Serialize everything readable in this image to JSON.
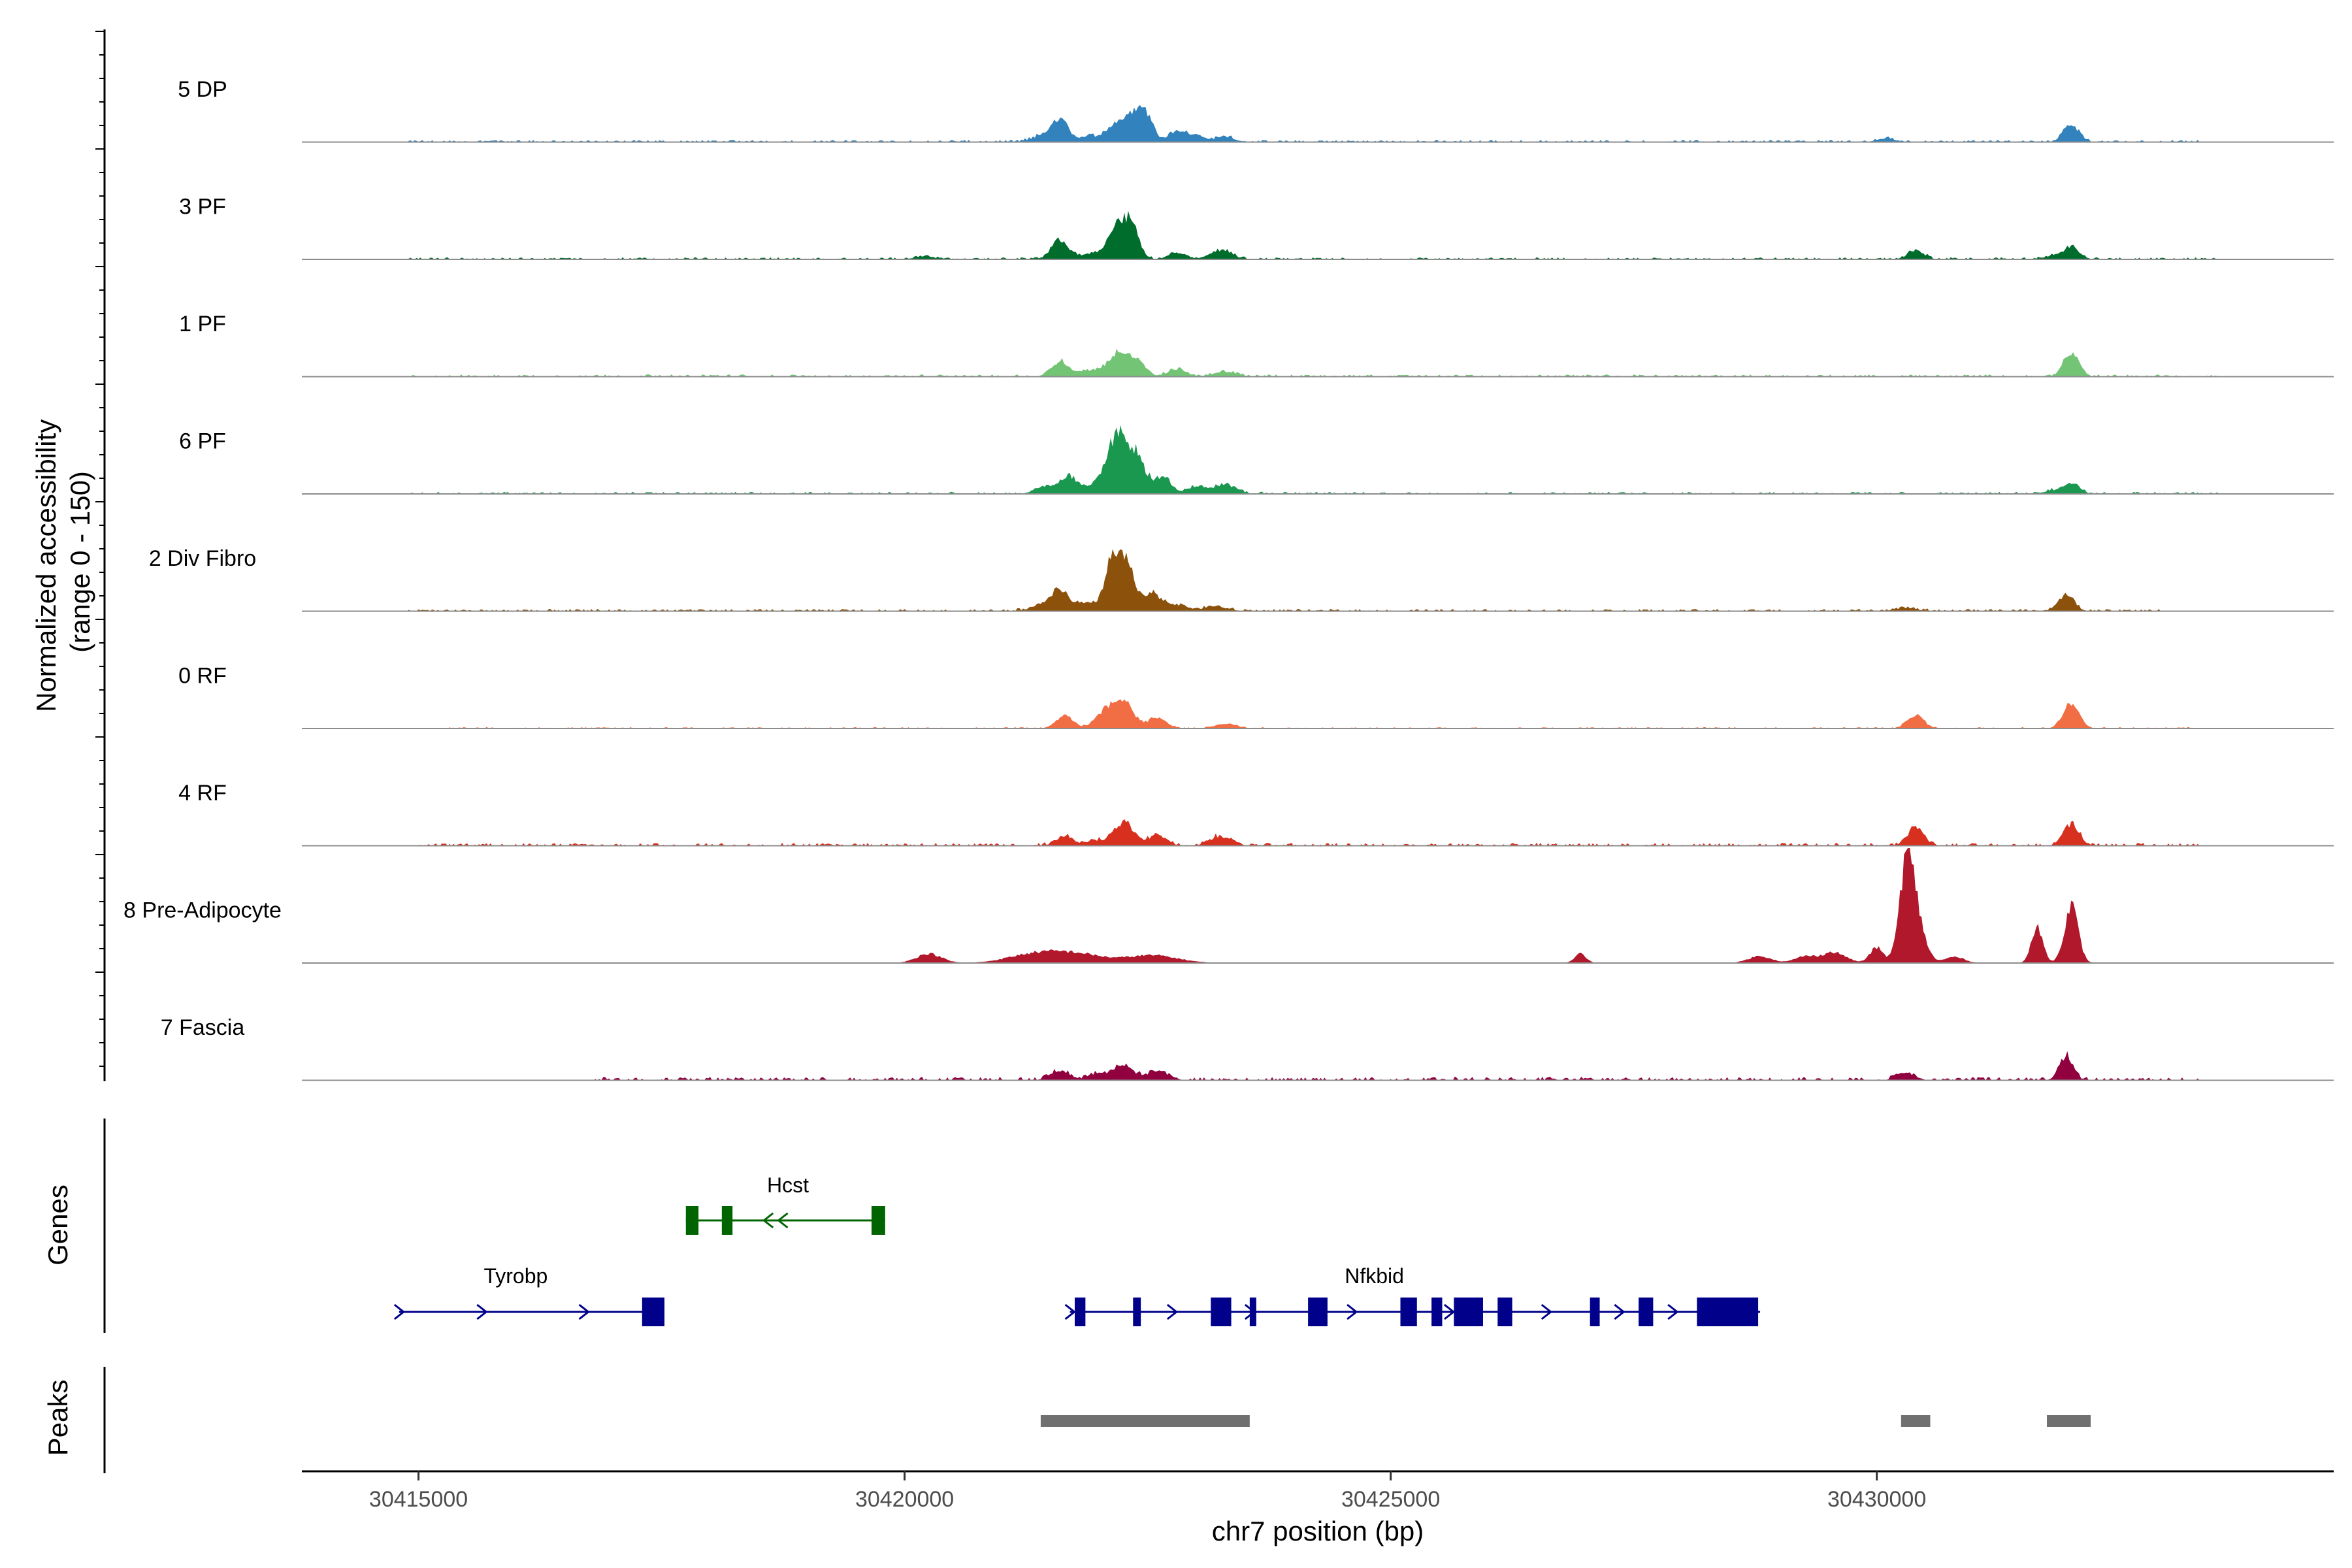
{
  "chart_data": {
    "type": "area",
    "title": "",
    "ylabel": "Normalized accessibility\n(range 0 - 150)",
    "ylabel_lines": [
      "Normalized accessibility",
      "(range 0 - 150)"
    ],
    "ylim": [
      0,
      150
    ],
    "xlabel": "chr7 position (bp)",
    "xlim": [
      30413800,
      30434700
    ],
    "x_ticks": [
      30415000,
      30420000,
      30425000,
      30430000
    ],
    "x_tick_labels": [
      "30415000",
      "30420000",
      "30425000",
      "30430000"
    ],
    "panel_labels": {
      "genes": "Genes",
      "peaks": "Peaks"
    },
    "tracks": [
      {
        "name": "5 DP",
        "color": "#3182bd",
        "peaks": [
          [
            30421400,
            7,
            100
          ],
          [
            30421900,
            6,
            80
          ],
          [
            30422200,
            26,
            120
          ],
          [
            30422400,
            30,
            90
          ],
          [
            30421600,
            28,
            90
          ],
          [
            30422500,
            20,
            70
          ],
          [
            30422800,
            14,
            90
          ],
          [
            30423000,
            8,
            90
          ],
          [
            30423300,
            7,
            90
          ],
          [
            30430100,
            5,
            90
          ],
          [
            30432000,
            22,
            80
          ]
        ],
        "noise": [
          [
            30414900,
            30433300,
            2
          ]
        ]
      },
      {
        "name": "3 PF",
        "color": "#006d2c",
        "peaks": [
          [
            30421600,
            25,
            90
          ],
          [
            30421900,
            6,
            80
          ],
          [
            30422200,
            45,
            110
          ],
          [
            30422350,
            30,
            70
          ],
          [
            30422800,
            8,
            90
          ],
          [
            30423250,
            12,
            110
          ],
          [
            30420200,
            4,
            90
          ],
          [
            30430400,
            12,
            80
          ],
          [
            30432000,
            16,
            80
          ],
          [
            30431800,
            4,
            90
          ]
        ],
        "noise": [
          [
            30414900,
            30433500,
            1.8
          ]
        ]
      },
      {
        "name": "1 PF",
        "color": "#74c476",
        "peaks": [
          [
            30421600,
            20,
            90
          ],
          [
            30421900,
            8,
            90
          ],
          [
            30422200,
            30,
            110
          ],
          [
            30422400,
            18,
            80
          ],
          [
            30422800,
            10,
            90
          ],
          [
            30423300,
            6,
            120
          ],
          [
            30432000,
            30,
            80
          ]
        ],
        "noise": [
          [
            30414900,
            30433500,
            2
          ]
        ]
      },
      {
        "name": "6 PF",
        "color": "#1a9850",
        "peaks": [
          [
            30421450,
            10,
            100
          ],
          [
            30421700,
            22,
            90
          ],
          [
            30422000,
            14,
            90
          ],
          [
            30422200,
            78,
            100
          ],
          [
            30422400,
            42,
            80
          ],
          [
            30422650,
            22,
            90
          ],
          [
            30423000,
            10,
            90
          ],
          [
            30423300,
            12,
            110
          ],
          [
            30432000,
            15,
            80
          ],
          [
            30431800,
            4,
            90
          ]
        ],
        "noise": [
          [
            30414900,
            30433500,
            1.8
          ]
        ]
      },
      {
        "name": "2 Div Fibro",
        "color": "#8c510a",
        "peaks": [
          [
            30421400,
            6,
            120
          ],
          [
            30421600,
            28,
            90
          ],
          [
            30421850,
            10,
            80
          ],
          [
            30422150,
            68,
            90
          ],
          [
            30422300,
            45,
            80
          ],
          [
            30422550,
            22,
            90
          ],
          [
            30422800,
            8,
            110
          ],
          [
            30423200,
            6,
            120
          ],
          [
            30430300,
            4,
            110
          ],
          [
            30431950,
            22,
            80
          ]
        ],
        "noise": [
          [
            30414900,
            30433000,
            2
          ]
        ]
      },
      {
        "name": "0 RF",
        "color": "#f16d43",
        "peaks": [
          [
            30421650,
            16,
            90
          ],
          [
            30422050,
            20,
            90
          ],
          [
            30422250,
            36,
            100
          ],
          [
            30422600,
            14,
            90
          ],
          [
            30423300,
            6,
            110
          ],
          [
            30430400,
            18,
            80
          ],
          [
            30432000,
            33,
            80
          ]
        ],
        "noise": [
          [
            30415200,
            30433300,
            1.2
          ]
        ]
      },
      {
        "name": "4 RF",
        "color": "#d7301f",
        "peaks": [
          [
            30421650,
            12,
            90
          ],
          [
            30421950,
            7,
            80
          ],
          [
            30422250,
            30,
            100
          ],
          [
            30422600,
            14,
            90
          ],
          [
            30423250,
            12,
            110
          ],
          [
            30430400,
            24,
            80
          ],
          [
            30432000,
            28,
            80
          ]
        ],
        "noise": [
          [
            30414900,
            30433300,
            2.5
          ]
        ]
      },
      {
        "name": "8 Pre-Adipocyte",
        "color": "#b2182b",
        "peaks": [
          [
            30420250,
            12,
            130
          ],
          [
            30421300,
            10,
            260
          ],
          [
            30421750,
            12,
            280
          ],
          [
            30422550,
            10,
            260
          ],
          [
            30426950,
            12,
            60
          ],
          [
            30428800,
            9,
            120
          ],
          [
            30429250,
            8,
            100
          ],
          [
            30429550,
            14,
            130
          ],
          [
            30430000,
            20,
            70
          ],
          [
            30430300,
            110,
            70
          ],
          [
            30430400,
            60,
            90
          ],
          [
            30430800,
            8,
            100
          ],
          [
            30431650,
            45,
            60
          ],
          [
            30432000,
            75,
            70
          ]
        ],
        "noise": []
      },
      {
        "name": "7 Fascia",
        "color": "#91003f",
        "peaks": [
          [
            30421600,
            12,
            100
          ],
          [
            30422000,
            8,
            100
          ],
          [
            30422250,
            18,
            100
          ],
          [
            30422600,
            12,
            110
          ],
          [
            30430300,
            10,
            90
          ],
          [
            30431950,
            32,
            70
          ]
        ],
        "noise": [
          [
            30416800,
            30433300,
            3
          ]
        ]
      }
    ],
    "genes": [
      {
        "name": "Hcst",
        "color": "#006400",
        "strand": "-",
        "start": 30417750,
        "end": 30419800,
        "row": 0,
        "exons": [
          [
            30417750,
            30417880
          ],
          [
            30418120,
            30418230
          ],
          [
            30419660,
            30419800
          ]
        ],
        "arrows": [
          30418600,
          30418750
        ]
      },
      {
        "name": "Tyrobp",
        "color": "#00008b",
        "strand": "+",
        "start": 30414800,
        "end": 30417530,
        "row": 1,
        "exons": [
          [
            30417300,
            30417530
          ]
        ],
        "arrows": [
          30414800,
          30415650,
          30416700
        ]
      },
      {
        "name": "Nfkbid",
        "color": "#00008b",
        "strand": "+",
        "start": 30421700,
        "end": 30428800,
        "row": 1,
        "exons": [
          [
            30421750,
            30421860
          ],
          [
            30422350,
            30422430
          ],
          [
            30423150,
            30423360
          ],
          [
            30423550,
            30423610
          ],
          [
            30424150,
            30424350
          ],
          [
            30425100,
            30425270
          ],
          [
            30425420,
            30425530
          ],
          [
            30425650,
            30425950
          ],
          [
            30426100,
            30426250
          ],
          [
            30427050,
            30427150
          ],
          [
            30427550,
            30427700
          ],
          [
            30428150,
            30428780
          ]
        ],
        "arrows": [
          30421700,
          30422750,
          30423550,
          30424600,
          30425600,
          30426600,
          30427350,
          30427900
        ]
      }
    ],
    "peak_regions": [
      [
        30421400,
        30423550
      ],
      [
        30430250,
        30430550
      ],
      [
        30431750,
        30432200
      ]
    ]
  }
}
